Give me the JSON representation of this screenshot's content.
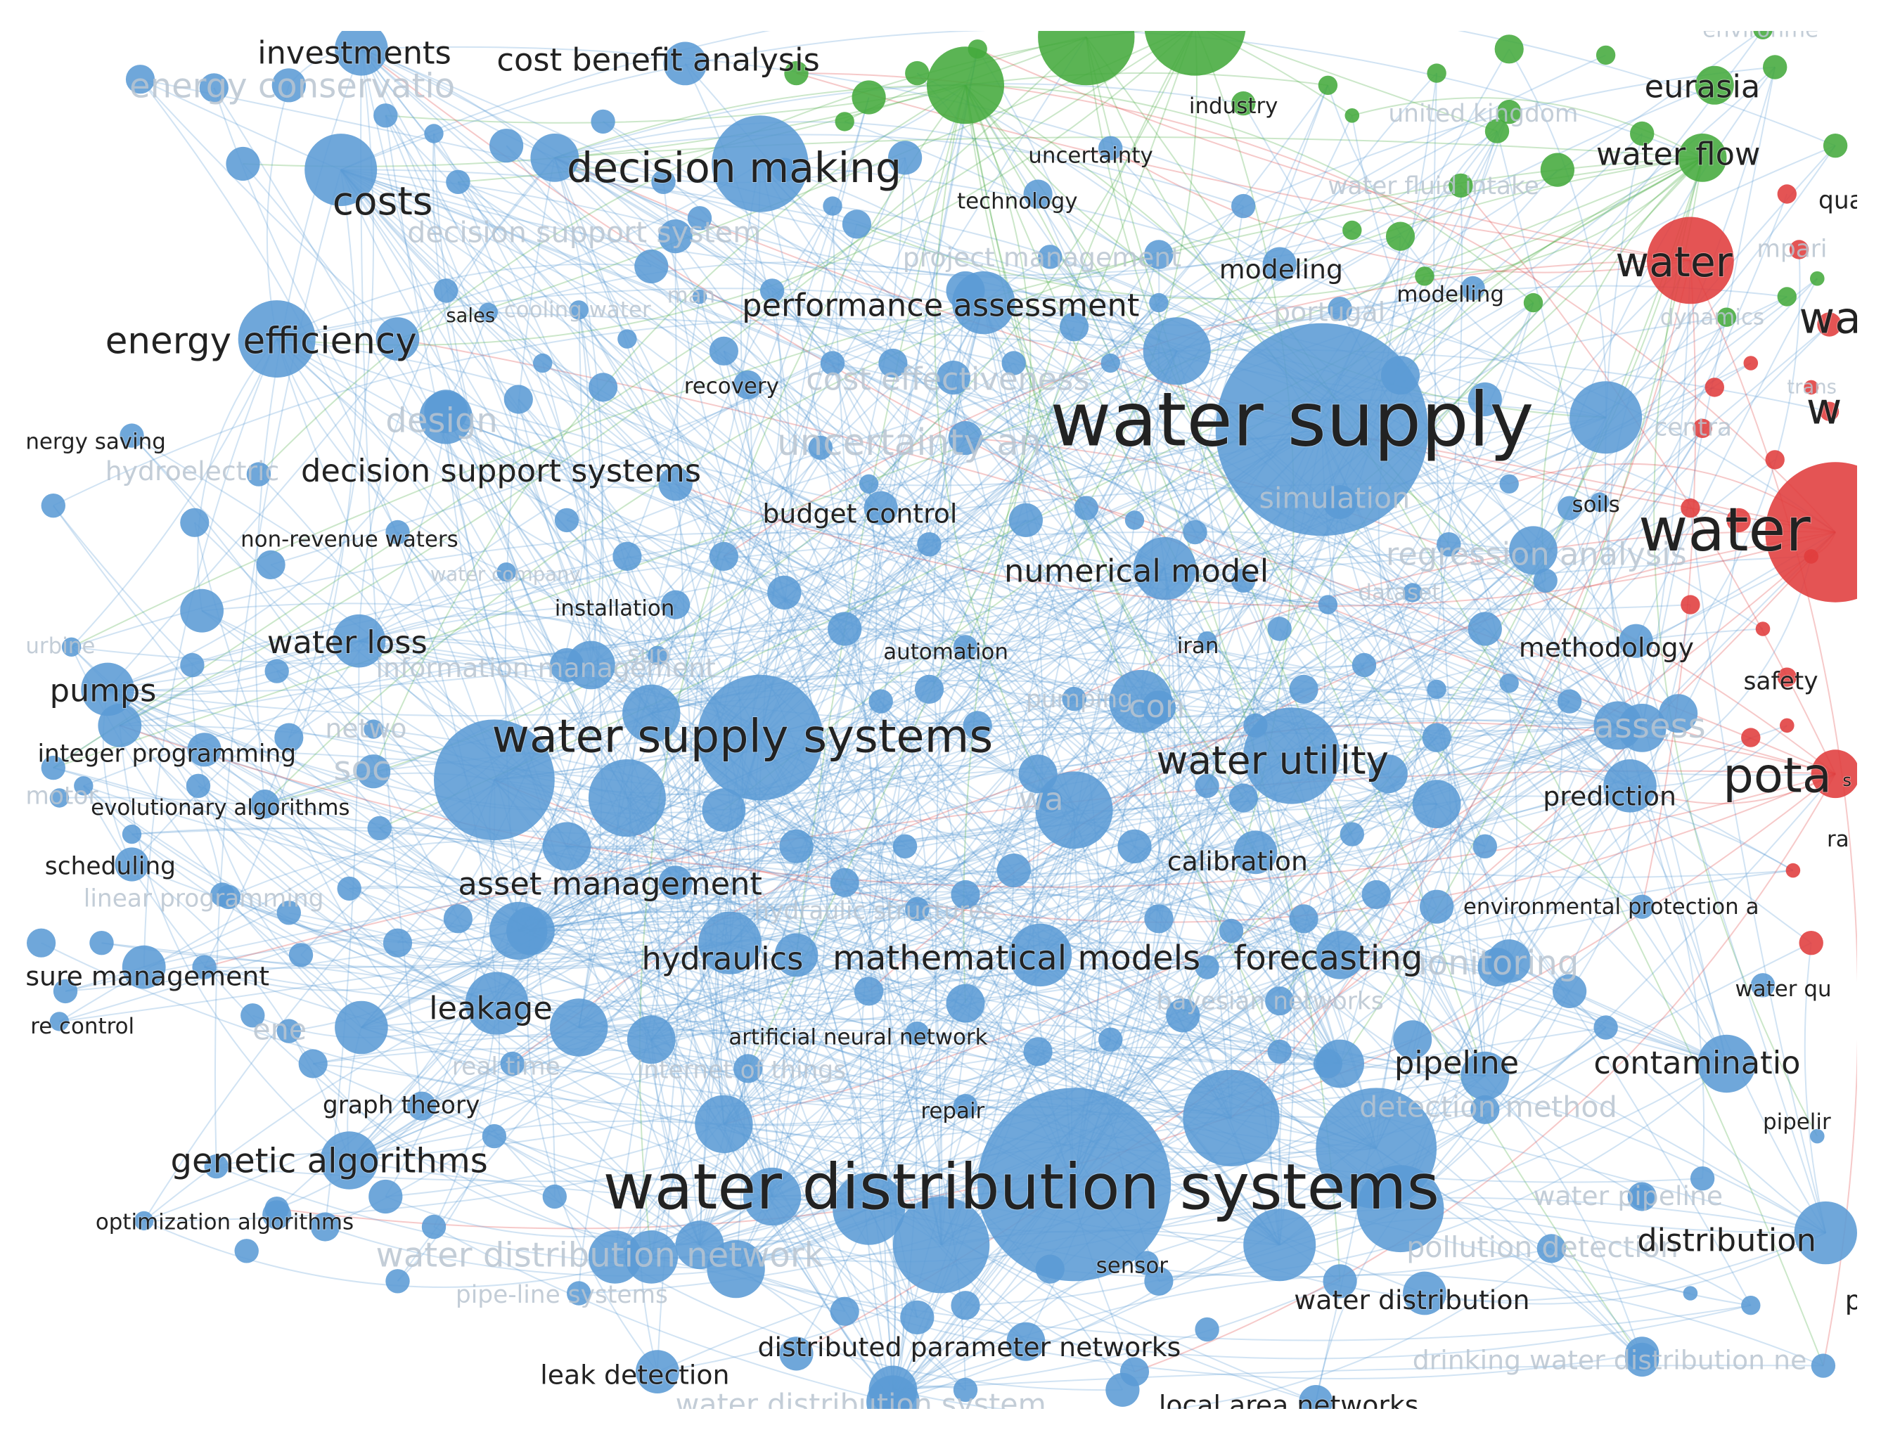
{
  "colors": {
    "blue_cluster": "#5b9bd5",
    "green_cluster": "#44aa3c",
    "red_cluster": "#e03c3c",
    "label_dark": "#222222",
    "label_faint": "#b9c4d0"
  },
  "terms": [
    {
      "id": "water-supply",
      "label": "water supply",
      "cluster": "blue"
    },
    {
      "id": "water-distribution-systems",
      "label": "water distribution systems",
      "cluster": "blue"
    },
    {
      "id": "water-supply-systems",
      "label": "water supply systems",
      "cluster": "blue"
    },
    {
      "id": "decision-making",
      "label": "decision making",
      "cluster": "blue"
    },
    {
      "id": "energy-efficiency",
      "label": "energy efficiency",
      "cluster": "blue"
    },
    {
      "id": "costs",
      "label": "costs",
      "cluster": "blue"
    },
    {
      "id": "investments",
      "label": "investments",
      "cluster": "blue"
    },
    {
      "id": "cost-benefit-analysis",
      "label": "cost benefit analysis",
      "cluster": "blue"
    },
    {
      "id": "performance-assessment",
      "label": "performance assessment",
      "cluster": "blue"
    },
    {
      "id": "decision-support-systems",
      "label": "decision support systems",
      "cluster": "blue"
    },
    {
      "id": "water-utility",
      "label": "water utility",
      "cluster": "blue"
    },
    {
      "id": "numerical-model",
      "label": "numerical model",
      "cluster": "blue"
    },
    {
      "id": "asset-management",
      "label": "asset management",
      "cluster": "blue"
    },
    {
      "id": "hydraulics",
      "label": "hydraulics",
      "cluster": "blue"
    },
    {
      "id": "mathematical-models",
      "label": "mathematical models",
      "cluster": "blue"
    },
    {
      "id": "forecasting",
      "label": "forecasting",
      "cluster": "blue"
    },
    {
      "id": "leakage",
      "label": "leakage",
      "cluster": "blue"
    },
    {
      "id": "genetic-algorithms",
      "label": "genetic algorithms",
      "cluster": "blue"
    },
    {
      "id": "pumps",
      "label": "pumps",
      "cluster": "blue"
    },
    {
      "id": "water-loss",
      "label": "water loss",
      "cluster": "blue"
    },
    {
      "id": "pipeline",
      "label": "pipeline",
      "cluster": "blue"
    },
    {
      "id": "contamination",
      "label": "contaminatio",
      "cluster": "blue"
    },
    {
      "id": "distribution",
      "label": "distribution",
      "cluster": "blue"
    },
    {
      "id": "water-distribution",
      "label": "water distribution",
      "cluster": "blue"
    },
    {
      "id": "methodology",
      "label": "methodology",
      "cluster": "blue"
    },
    {
      "id": "prediction",
      "label": "prediction",
      "cluster": "blue"
    },
    {
      "id": "calibration",
      "label": "calibration",
      "cluster": "blue"
    },
    {
      "id": "budget-control",
      "label": "budget control",
      "cluster": "blue"
    },
    {
      "id": "modeling",
      "label": "modeling",
      "cluster": "blue"
    },
    {
      "id": "modelling",
      "label": "modelling",
      "cluster": "blue"
    },
    {
      "id": "technology",
      "label": "technology",
      "cluster": "blue"
    },
    {
      "id": "uncertainty",
      "label": "uncertainty",
      "cluster": "blue"
    },
    {
      "id": "recovery",
      "label": "recovery",
      "cluster": "blue"
    },
    {
      "id": "sales",
      "label": "sales",
      "cluster": "blue"
    },
    {
      "id": "non-revenue-waters",
      "label": "non-revenue waters",
      "cluster": "blue"
    },
    {
      "id": "installation",
      "label": "installation",
      "cluster": "blue"
    },
    {
      "id": "automation",
      "label": "automation",
      "cluster": "blue"
    },
    {
      "id": "iran",
      "label": "iran",
      "cluster": "blue"
    },
    {
      "id": "integer-programming",
      "label": "integer programming",
      "cluster": "blue"
    },
    {
      "id": "evolutionary-algorithms",
      "label": "evolutionary algorithms",
      "cluster": "blue"
    },
    {
      "id": "scheduling",
      "label": "scheduling",
      "cluster": "blue"
    },
    {
      "id": "pressure-management",
      "label": "sure management",
      "cluster": "blue"
    },
    {
      "id": "pressure-control",
      "label": "re control",
      "cluster": "blue"
    },
    {
      "id": "energy-saving",
      "label": "nergy saving",
      "cluster": "blue"
    },
    {
      "id": "turbine",
      "label": "urbine",
      "cluster": "blue"
    },
    {
      "id": "artificial-neural-network",
      "label": "artificial neural network",
      "cluster": "blue"
    },
    {
      "id": "graph-theory",
      "label": "graph theory",
      "cluster": "blue"
    },
    {
      "id": "repair",
      "label": "repair",
      "cluster": "blue"
    },
    {
      "id": "optimization-algorithms",
      "label": "optimization algorithms",
      "cluster": "blue"
    },
    {
      "id": "sensor",
      "label": "sensor",
      "cluster": "blue"
    },
    {
      "id": "leak-detection",
      "label": "leak detection",
      "cluster": "blue"
    },
    {
      "id": "distributed-parameter-networks",
      "label": "distributed parameter networks",
      "cluster": "blue"
    },
    {
      "id": "local-area-networks",
      "label": "local area networks",
      "cluster": "blue"
    },
    {
      "id": "environmental-protection",
      "label": "environmental protection a",
      "cluster": "blue"
    },
    {
      "id": "water-quality",
      "label": "water qu",
      "cluster": "blue"
    },
    {
      "id": "pipelines",
      "label": "pipelir",
      "cluster": "blue"
    },
    {
      "id": "soils",
      "label": "soils",
      "cluster": "blue"
    },
    {
      "id": "industry",
      "label": "industry",
      "cluster": "green"
    },
    {
      "id": "eurasia",
      "label": "eurasia",
      "cluster": "green"
    },
    {
      "id": "water-flow",
      "label": "water flow",
      "cluster": "green"
    },
    {
      "id": "water",
      "label": "water",
      "cluster": "red"
    },
    {
      "id": "water-big",
      "label": "water",
      "cluster": "red"
    },
    {
      "id": "potable",
      "label": "pota",
      "cluster": "red"
    },
    {
      "id": "safety",
      "label": "safety",
      "cluster": "red"
    },
    {
      "id": "quality-cut",
      "label": "qua",
      "cluster": "red"
    },
    {
      "id": "wa-cut",
      "label": "wa",
      "cluster": "red"
    },
    {
      "id": "w-cut",
      "label": "w",
      "cluster": "red"
    },
    {
      "id": "ra-cut",
      "label": "ra",
      "cluster": "red"
    },
    {
      "id": "p-cut",
      "label": "p",
      "cluster": "blue"
    },
    {
      "id": "s-cut",
      "label": "s",
      "cluster": "blue"
    },
    {
      "id": "faint-decision-support-system",
      "label": "decision support system",
      "cluster": "blue"
    },
    {
      "id": "faint-project-management",
      "label": "project management",
      "cluster": "blue"
    },
    {
      "id": "faint-cost-effectiveness",
      "label": "cost effectiveness",
      "cluster": "blue"
    },
    {
      "id": "faint-design",
      "label": "design",
      "cluster": "blue"
    },
    {
      "id": "faint-uncertainty-analysis",
      "label": "uncertainty an",
      "cluster": "blue"
    },
    {
      "id": "faint-simulation",
      "label": "simulation",
      "cluster": "blue"
    },
    {
      "id": "faint-regression-analysis",
      "label": "regression analysis",
      "cluster": "blue"
    },
    {
      "id": "faint-dataset",
      "label": "dataset",
      "cluster": "blue"
    },
    {
      "id": "faint-portugal",
      "label": "portugal",
      "cluster": "blue"
    },
    {
      "id": "faint-hydroelectric",
      "label": "hydroelectric",
      "cluster": "blue"
    },
    {
      "id": "faint-linear-programming",
      "label": "linear programming",
      "cluster": "blue"
    },
    {
      "id": "faint-hydraulic-structures",
      "label": "hydraulic structures",
      "cluster": "blue"
    },
    {
      "id": "faint-monitoring",
      "label": "monitoring",
      "cluster": "blue"
    },
    {
      "id": "faint-bayesian-networks",
      "label": "bayesian networks",
      "cluster": "blue"
    },
    {
      "id": "faint-real-time",
      "label": "real time",
      "cluster": "blue"
    },
    {
      "id": "faint-internet-of-things",
      "label": "internet of things",
      "cluster": "blue"
    },
    {
      "id": "faint-detection-method",
      "label": "detection method",
      "cluster": "blue"
    },
    {
      "id": "faint-water-distribution-network",
      "label": "water distribution network",
      "cluster": "blue"
    },
    {
      "id": "faint-pipe-line-systems",
      "label": "pipe-line systems",
      "cluster": "blue"
    },
    {
      "id": "faint-water-pipeline",
      "label": "water pipeline",
      "cluster": "blue"
    },
    {
      "id": "faint-pollution-detection",
      "label": "pollution detection",
      "cluster": "blue"
    },
    {
      "id": "faint-drinking-water-distribution",
      "label": "drinking water distribution ne",
      "cluster": "blue"
    },
    {
      "id": "faint-water-distribution-system",
      "label": "water distribution system",
      "cluster": "blue"
    },
    {
      "id": "faint-energy-conservation",
      "label": "energy conservatio",
      "cluster": "blue"
    },
    {
      "id": "faint-information-management",
      "label": "information management",
      "cluster": "blue"
    },
    {
      "id": "faint-water-fluid-intake",
      "label": "water fluid intake",
      "cluster": "green"
    },
    {
      "id": "faint-united-kingdom",
      "label": "united kingdom",
      "cluster": "green"
    },
    {
      "id": "faint-dynamics",
      "label": "dynamics",
      "cluster": "green"
    },
    {
      "id": "faint-cooling-water",
      "label": "cooling water",
      "cluster": "blue"
    },
    {
      "id": "faint-water-company",
      "label": "water company",
      "cluster": "blue"
    },
    {
      "id": "faint-network",
      "label": "netwo",
      "cluster": "blue"
    },
    {
      "id": "faint-motor",
      "label": "motor",
      "cluster": "blue"
    },
    {
      "id": "faint-environme",
      "label": "environme",
      "cluster": "green"
    },
    {
      "id": "faint-manage",
      "label": "man",
      "cluster": "blue"
    },
    {
      "id": "faint-compari",
      "label": "mpari",
      "cluster": "red"
    },
    {
      "id": "faint-trans",
      "label": "trans",
      "cluster": "red"
    },
    {
      "id": "faint-centra",
      "label": "centra",
      "cluster": "red"
    },
    {
      "id": "faint-assess",
      "label": "assess",
      "cluster": "blue"
    },
    {
      "id": "faint-sup",
      "label": "sup",
      "cluster": "blue"
    },
    {
      "id": "faint-con",
      "label": "con",
      "cluster": "blue"
    },
    {
      "id": "faint-soc",
      "label": "soc",
      "cluster": "blue"
    },
    {
      "id": "faint-water-cut",
      "label": "wa",
      "cluster": "blue"
    },
    {
      "id": "faint-ene",
      "label": "ene",
      "cluster": "blue"
    },
    {
      "id": "faint-pumping",
      "label": "pumping",
      "cluster": "blue"
    }
  ]
}
